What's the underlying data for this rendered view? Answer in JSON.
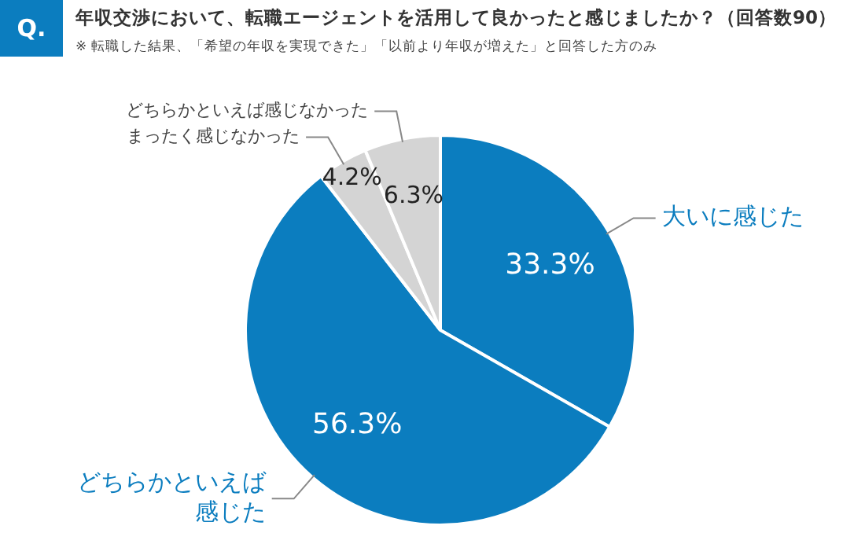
{
  "chart_data": {
    "type": "pie",
    "title": "年収交渉において、転職エージェントを活用して良かったと感じましたか？（回答数90）",
    "subtitle": "※ 転職した結果、「希望の年収を実現できた」「以前より年収が増えた」と回答した方のみ",
    "annotations": [
      "Q."
    ],
    "categories": [
      "大いに感じた",
      "どちらかといえば感じた",
      "まったく感じなかった",
      "どちらかといえば感じなかった"
    ],
    "values": [
      33.3,
      56.3,
      4.2,
      6.3
    ],
    "colors": [
      "#0b7dbf",
      "#0b7dbf",
      "#d4d4d4",
      "#d4d4d4"
    ],
    "value_labels": [
      "33.3%",
      "56.3%",
      "4.2%",
      "6.3%"
    ],
    "legend": false
  }
}
